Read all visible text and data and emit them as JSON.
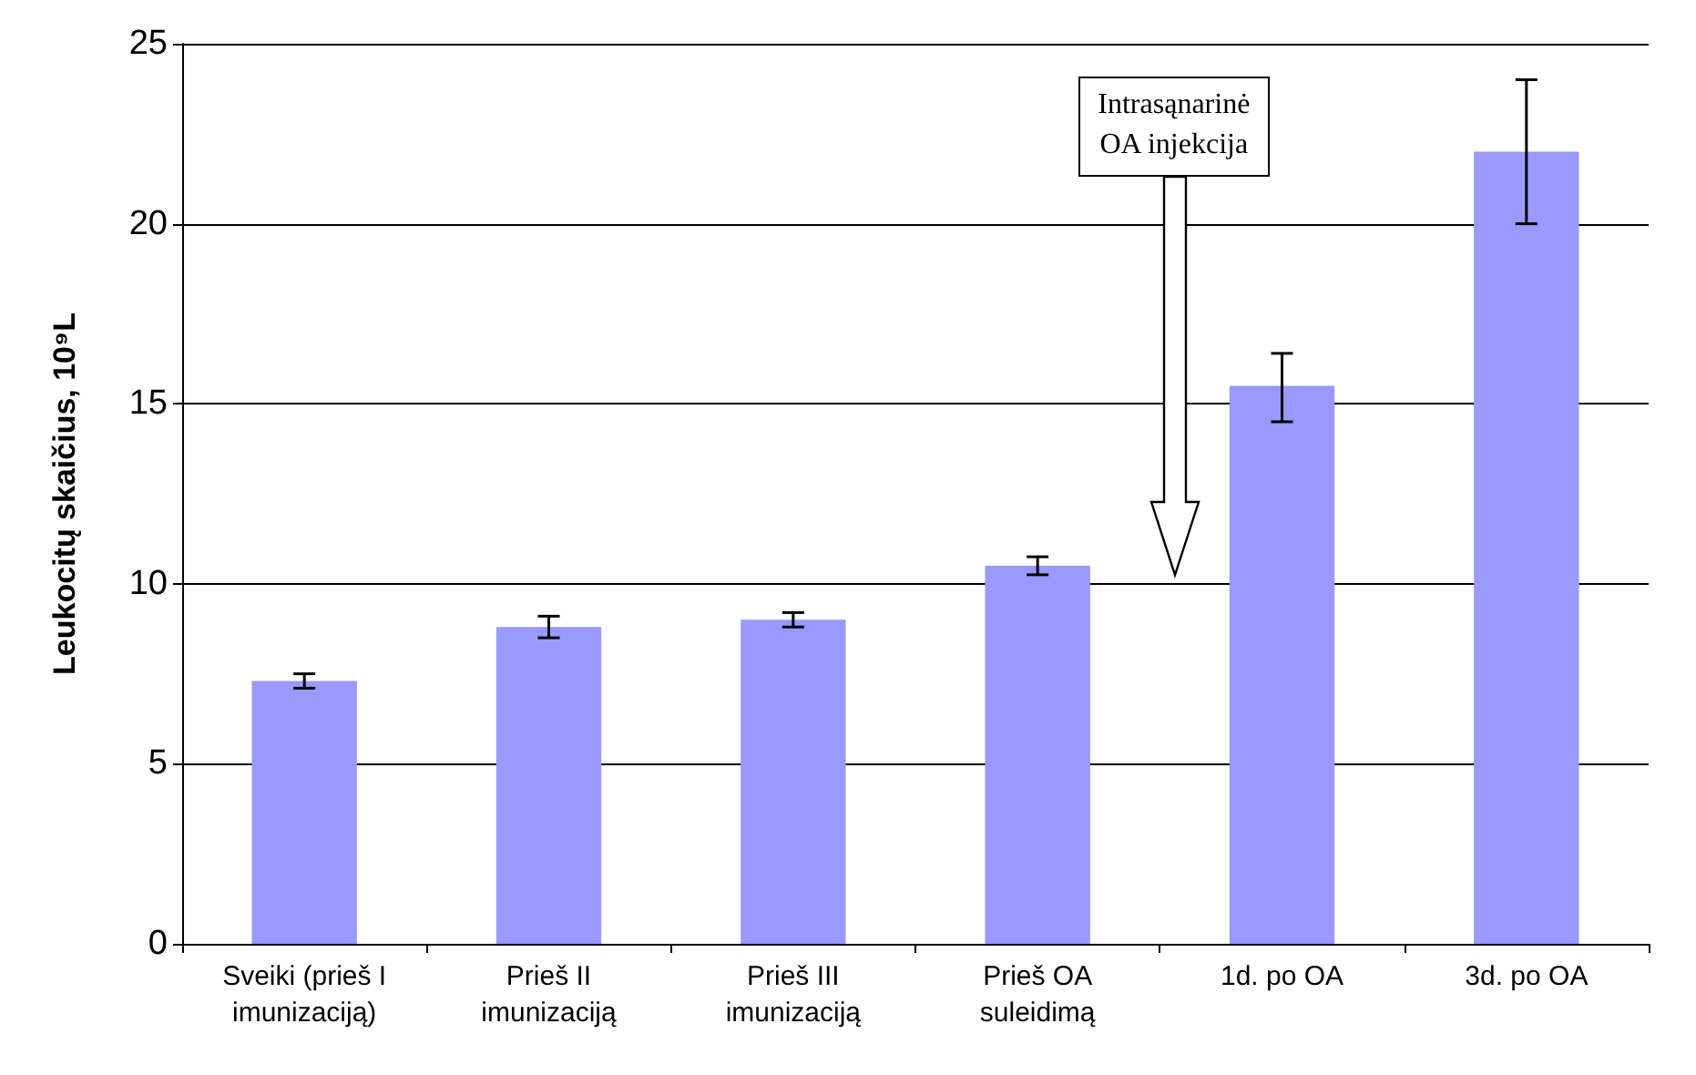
{
  "chart_data": {
    "type": "bar",
    "ylabel": "Leukocitų skaičius, 10⁹L",
    "categories": [
      "Sveiki (prieš I\nimunizaciją)",
      "Prieš II\nimunizaciją",
      "Prieš III\nimunizaciją",
      "Prieš OA\nsuleidimą",
      "1d. po OA",
      "3d. po OA"
    ],
    "values": [
      7.3,
      8.8,
      9.0,
      10.5,
      15.5,
      22.0
    ],
    "errors": [
      0.2,
      0.3,
      0.2,
      0.25,
      [
        14.5,
        16.4
      ],
      [
        20,
        24
      ]
    ],
    "color": "#9999ff",
    "ylim": [
      0,
      25
    ],
    "yticks": [
      0,
      5,
      10,
      15,
      20,
      25
    ],
    "grid": "y",
    "annotations": [
      "Intrasąnarinė\nOA injekcija"
    ]
  }
}
